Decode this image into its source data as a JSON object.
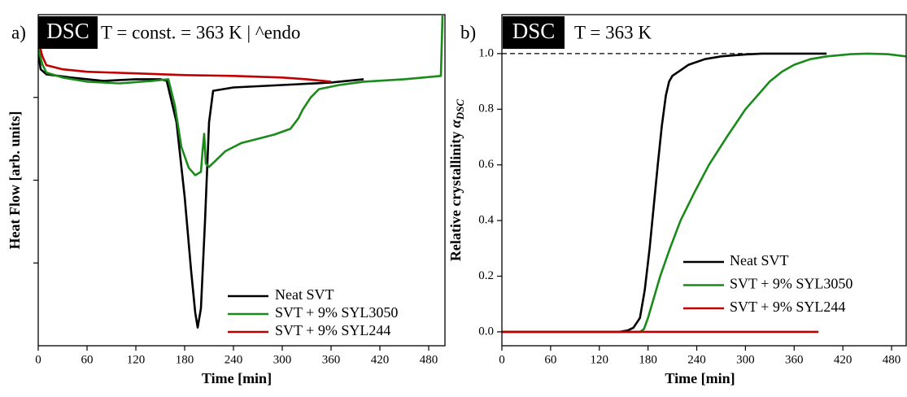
{
  "chart_data": [
    {
      "type": "line",
      "panel_label": "a)",
      "badge": "DSC",
      "condition": "T = const. = 363 K | ^endo",
      "x_label": "Time [min]",
      "y_label": "Heat Flow [arb. units]",
      "xlim": [
        0,
        500
      ],
      "xticks": [
        0,
        60,
        120,
        180,
        240,
        300,
        360,
        420,
        480
      ],
      "ylim": [
        0,
        4
      ],
      "yticks": [
        1,
        2,
        3
      ],
      "legend": "lower right",
      "series": [
        {
          "name": "Neat SVT",
          "color": "#000000",
          "x": [
            0,
            3,
            10,
            40,
            80,
            120,
            150,
            158,
            170,
            180,
            188,
            193,
            196,
            200,
            205,
            210,
            215,
            240,
            280,
            320,
            360,
            400
          ],
          "values": [
            3.54,
            3.34,
            3.28,
            3.24,
            3.2,
            3.22,
            3.22,
            3.2,
            2.7,
            1.8,
            0.9,
            0.4,
            0.22,
            0.45,
            1.5,
            2.7,
            3.08,
            3.12,
            3.14,
            3.16,
            3.18,
            3.22
          ]
        },
        {
          "name": "SVT + 9% SYL3050",
          "color": "#1a8a1a",
          "x": [
            0,
            5,
            10,
            30,
            60,
            100,
            140,
            160,
            168,
            176,
            185,
            193,
            200,
            202,
            204,
            206,
            210,
            230,
            250,
            270,
            290,
            310,
            320,
            325,
            335,
            345,
            370,
            400,
            450,
            495,
            497
          ],
          "values": [
            3.59,
            3.4,
            3.3,
            3.24,
            3.19,
            3.17,
            3.2,
            3.22,
            2.9,
            2.4,
            2.15,
            2.06,
            2.1,
            2.35,
            2.56,
            2.2,
            2.16,
            2.35,
            2.45,
            2.5,
            2.55,
            2.62,
            2.75,
            2.85,
            3.0,
            3.1,
            3.15,
            3.19,
            3.22,
            3.26,
            3.99
          ]
        },
        {
          "name": "SVT + 9% SYL244",
          "color": "#c00000",
          "x": [
            0,
            5,
            10,
            30,
            60,
            120,
            180,
            240,
            300,
            330,
            360
          ],
          "values": [
            3.69,
            3.5,
            3.39,
            3.34,
            3.31,
            3.29,
            3.27,
            3.26,
            3.24,
            3.22,
            3.19
          ]
        }
      ]
    },
    {
      "type": "line",
      "panel_label": "b)",
      "badge": "DSC",
      "condition": "T = 363 K",
      "x_label": "Time [min]",
      "y_label": "Relative crystallinity ",
      "y_label_symbol": "α",
      "y_label_subscript": "DSC",
      "xlim": [
        0,
        498
      ],
      "xticks": [
        0,
        60,
        120,
        180,
        240,
        300,
        360,
        420,
        480
      ],
      "ylim": [
        -0.05,
        1.14
      ],
      "yticks": [
        {
          "value": 0,
          "label": "0.0"
        },
        0.2,
        0.4,
        0.6,
        0.8,
        {
          "value": 1,
          "label": "1.0"
        }
      ],
      "hline": {
        "y": 1,
        "x": [
          0,
          383
        ]
      },
      "legend": "lower center",
      "series": [
        {
          "name": "Neat SVT",
          "color": "#000000",
          "x": [
            0,
            145,
            155,
            162,
            170,
            176,
            182,
            187,
            192,
            197,
            202,
            206,
            210,
            220,
            230,
            250,
            270,
            300,
            320,
            360,
            400
          ],
          "values": [
            0,
            0,
            0.005,
            0.015,
            0.05,
            0.15,
            0.3,
            0.45,
            0.6,
            0.74,
            0.85,
            0.9,
            0.92,
            0.94,
            0.96,
            0.98,
            0.99,
            0.997,
            1,
            1,
            1
          ]
        },
        {
          "name": "SVT + 9% SYL3050",
          "color": "#1a8a1a",
          "x": [
            0,
            170,
            175,
            180,
            187,
            195,
            207,
            220,
            237,
            255,
            277,
            300,
            315,
            330,
            345,
            360,
            380,
            400,
            430,
            450,
            475,
            498
          ],
          "values": [
            0,
            0,
            0.01,
            0.05,
            0.12,
            0.2,
            0.3,
            0.4,
            0.5,
            0.6,
            0.7,
            0.8,
            0.85,
            0.9,
            0.935,
            0.96,
            0.98,
            0.99,
            0.998,
            1,
            0.998,
            0.99
          ]
        },
        {
          "name": "SVT + 9% SYL244",
          "color": "#c00000",
          "x": [
            0,
            390
          ],
          "values": [
            0,
            0
          ]
        }
      ]
    }
  ]
}
